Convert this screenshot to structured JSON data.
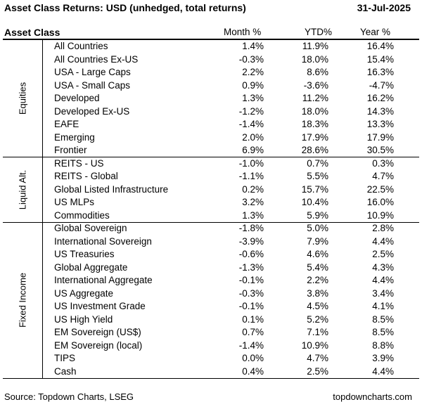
{
  "chart_data": {
    "type": "table",
    "title": "Asset Class Returns: USD (unhedged, total returns)",
    "date": "31-Jul-2025",
    "columns": [
      "Asset Class",
      "Month %",
      "YTD%",
      "Year %"
    ],
    "groups": [
      {
        "name": "Equities",
        "rows": [
          {
            "name": "All Countries",
            "month": "1.4%",
            "ytd": "11.9%",
            "year": "16.4%"
          },
          {
            "name": "All Countries Ex-US",
            "month": "-0.3%",
            "ytd": "18.0%",
            "year": "15.4%"
          },
          {
            "name": "USA - Large Caps",
            "month": "2.2%",
            "ytd": "8.6%",
            "year": "16.3%"
          },
          {
            "name": "USA - Small Caps",
            "month": "0.9%",
            "ytd": "-3.6%",
            "year": "-4.7%"
          },
          {
            "name": "Developed",
            "month": "1.3%",
            "ytd": "11.2%",
            "year": "16.2%"
          },
          {
            "name": "Developed Ex-US",
            "month": "-1.2%",
            "ytd": "18.0%",
            "year": "14.3%"
          },
          {
            "name": "EAFE",
            "month": "-1.4%",
            "ytd": "18.3%",
            "year": "13.3%"
          },
          {
            "name": "Emerging",
            "month": "2.0%",
            "ytd": "17.9%",
            "year": "17.9%"
          },
          {
            "name": "Frontier",
            "month": "6.9%",
            "ytd": "28.6%",
            "year": "30.5%"
          }
        ]
      },
      {
        "name": "Liquid Alt.",
        "rows": [
          {
            "name": "REITS - US",
            "month": "-1.0%",
            "ytd": "0.7%",
            "year": "0.3%"
          },
          {
            "name": "REITS - Global",
            "month": "-1.1%",
            "ytd": "5.5%",
            "year": "4.7%"
          },
          {
            "name": "Global Listed Infrastructure",
            "month": "0.2%",
            "ytd": "15.7%",
            "year": "22.5%"
          },
          {
            "name": "US MLPs",
            "month": "3.2%",
            "ytd": "10.4%",
            "year": "16.0%"
          },
          {
            "name": "Commodities",
            "month": "1.3%",
            "ytd": "5.9%",
            "year": "10.9%"
          }
        ]
      },
      {
        "name": "Fixed Income",
        "rows": [
          {
            "name": "Global Sovereign",
            "month": "-1.8%",
            "ytd": "5.0%",
            "year": "2.8%"
          },
          {
            "name": "International Sovereign",
            "month": "-3.9%",
            "ytd": "7.9%",
            "year": "4.4%"
          },
          {
            "name": "US Treasuries",
            "month": "-0.6%",
            "ytd": "4.6%",
            "year": "2.5%"
          },
          {
            "name": "Global Aggregate",
            "month": "-1.3%",
            "ytd": "5.4%",
            "year": "4.3%"
          },
          {
            "name": "International Aggregate",
            "month": "-0.1%",
            "ytd": "2.2%",
            "year": "4.4%"
          },
          {
            "name": "US Aggregate",
            "month": "-0.3%",
            "ytd": "3.8%",
            "year": "3.4%"
          },
          {
            "name": "US Investment Grade",
            "month": "-0.1%",
            "ytd": "4.5%",
            "year": "4.1%"
          },
          {
            "name": "US High Yield",
            "month": "0.1%",
            "ytd": "5.2%",
            "year": "8.5%"
          },
          {
            "name": "EM Sovereign (US$)",
            "month": "0.7%",
            "ytd": "7.1%",
            "year": "8.5%"
          },
          {
            "name": "EM Sovereign (local)",
            "month": "-1.4%",
            "ytd": "10.9%",
            "year": "8.8%"
          },
          {
            "name": "TIPS",
            "month": "0.0%",
            "ytd": "4.7%",
            "year": "3.9%"
          },
          {
            "name": "Cash",
            "month": "0.4%",
            "ytd": "2.5%",
            "year": "4.4%"
          }
        ]
      }
    ]
  },
  "footer": {
    "source": "Source: Topdown Charts, LSEG",
    "site": "topdowncharts.com"
  }
}
